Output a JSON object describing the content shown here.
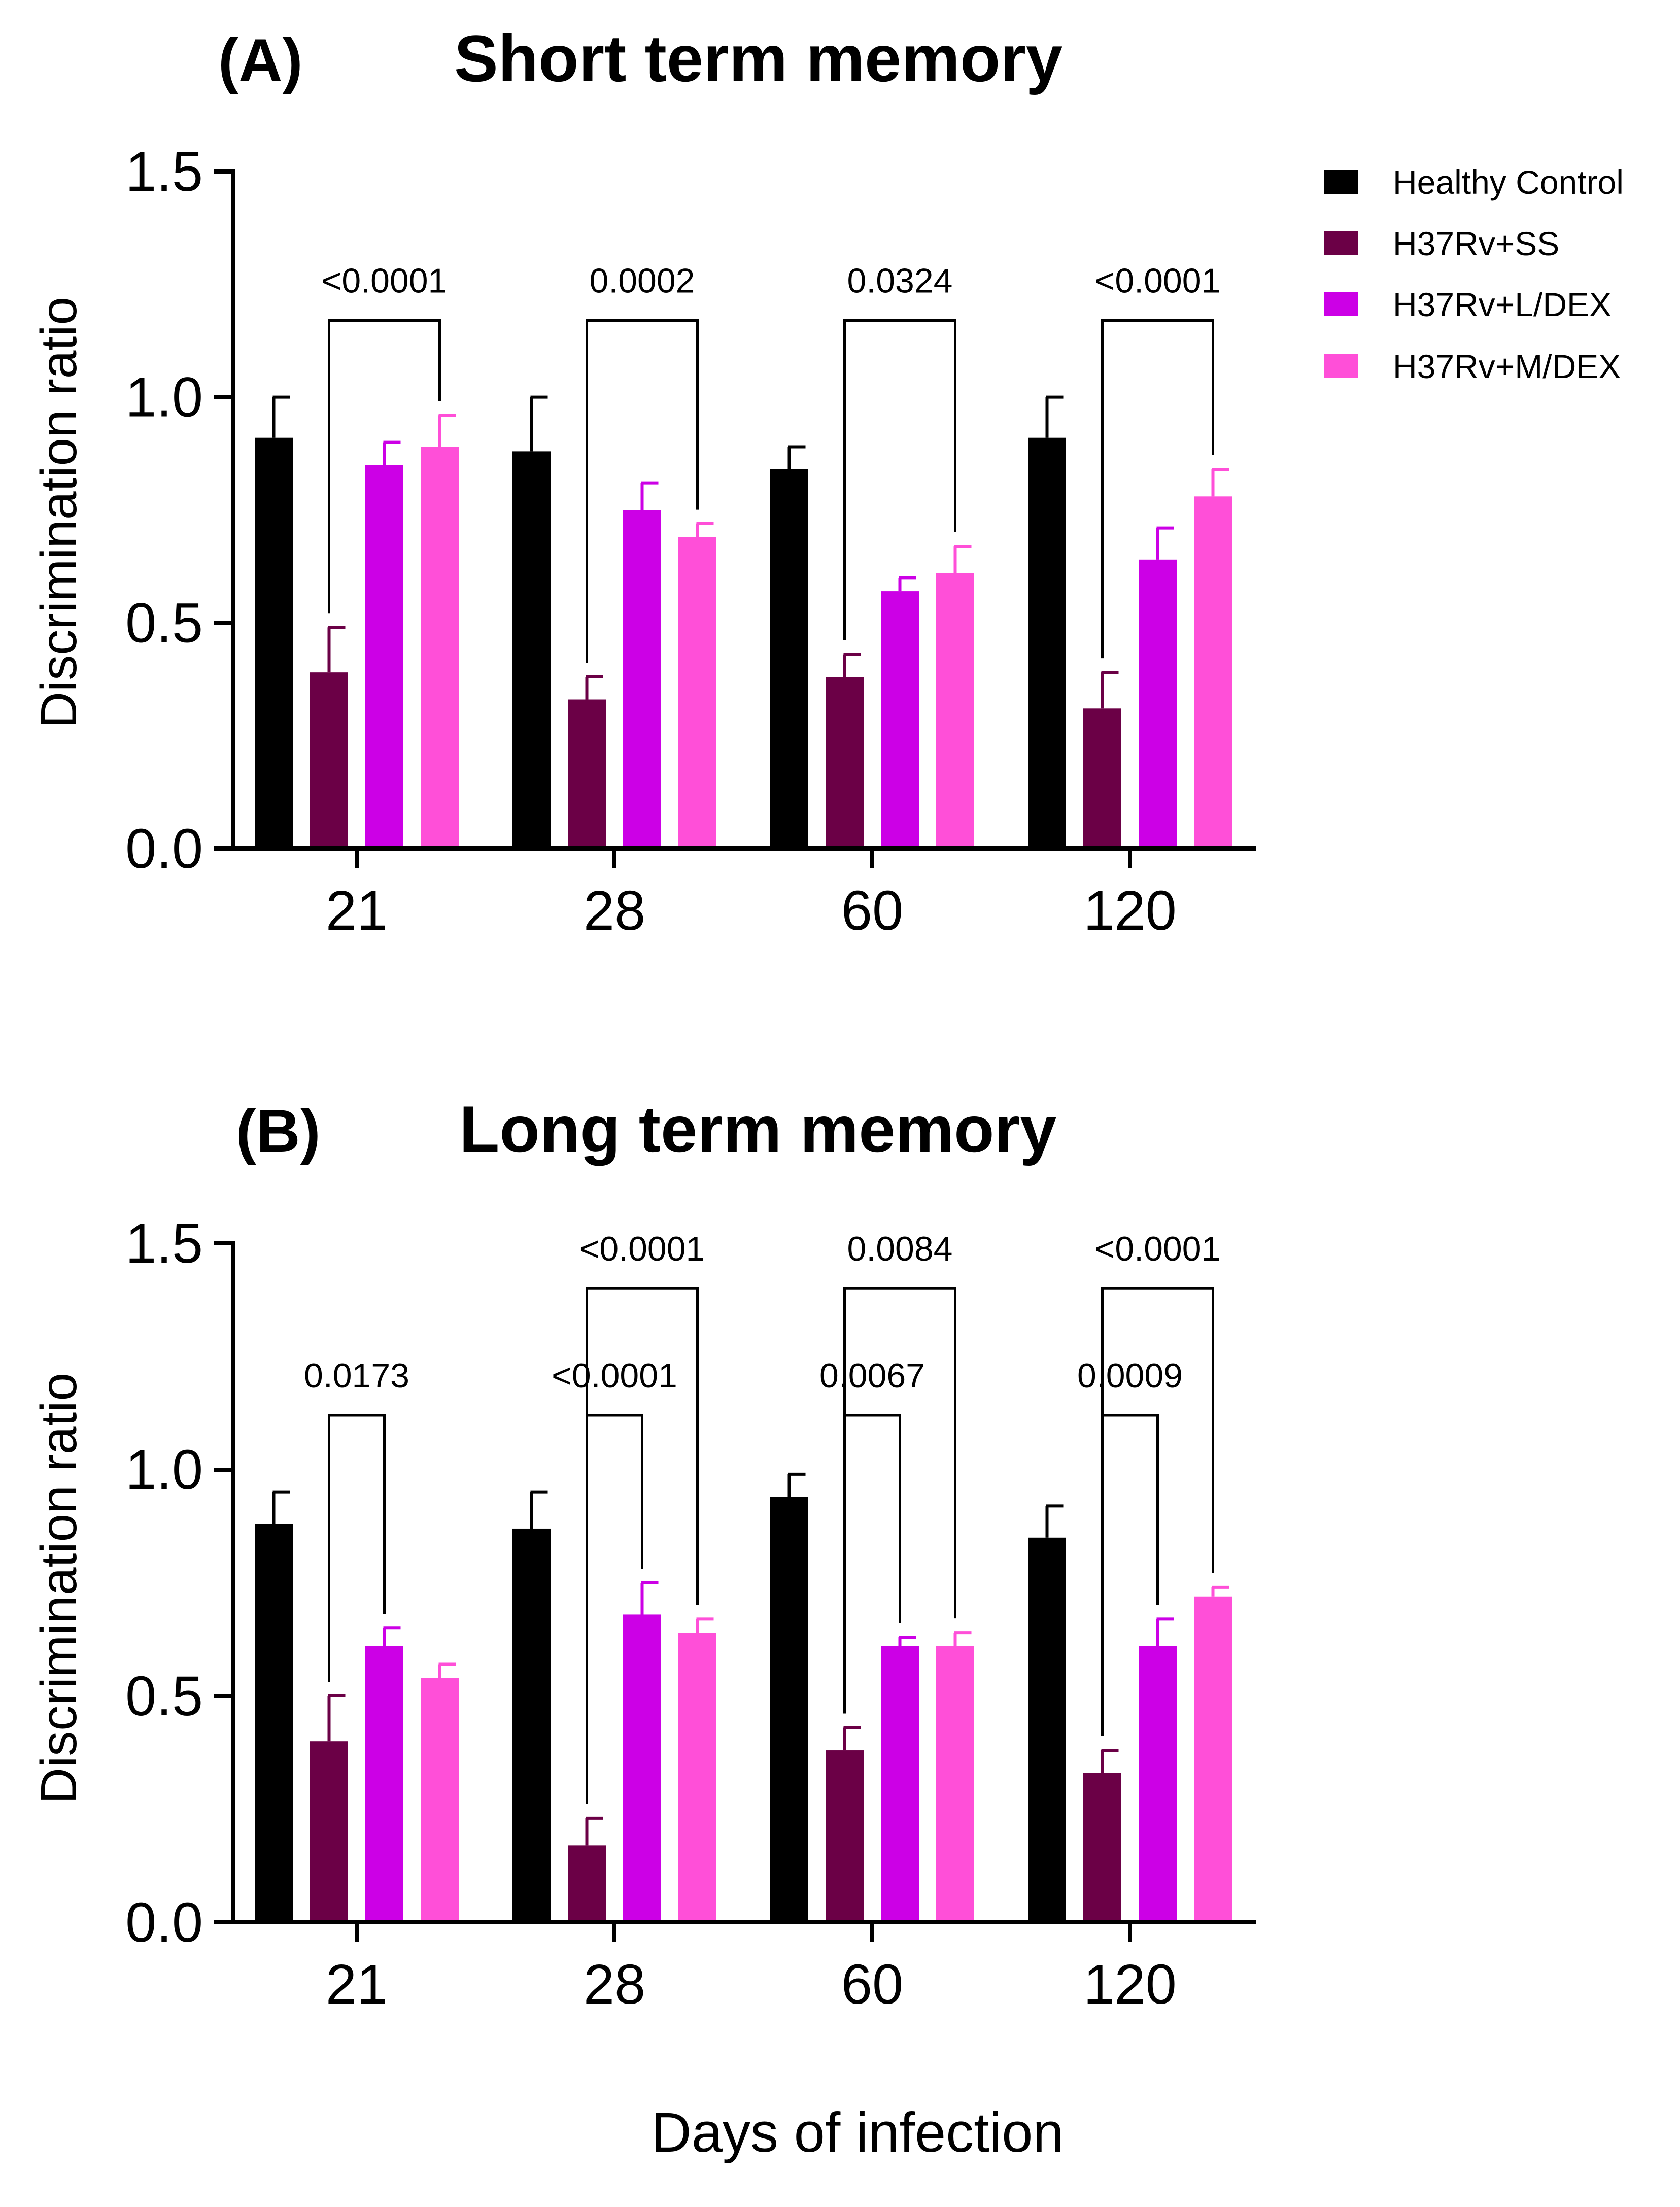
{
  "figure": {
    "xlabel": "Days of infection",
    "colors": {
      "Healthy Control": "#000000",
      "H37Rv+SS": "#6b0046",
      "H37Rv+L/DEX": "#cc00e6",
      "H37Rv+M/DEX": "#ff4fd8"
    }
  },
  "legend": {
    "position": "top-right",
    "items": [
      "Healthy Control",
      "H37Rv+SS",
      "H37Rv+L/DEX",
      "H37Rv+M/DEX"
    ]
  },
  "chart_data": [
    {
      "type": "bar",
      "panel": "(A)",
      "title": "Short term memory",
      "xlabel": "Days of infection",
      "ylabel": "Discrimination ratio",
      "ylim": [
        0,
        1.5
      ],
      "yticks": [
        "0.0",
        "0.5",
        "1.0",
        "1.5"
      ],
      "categories": [
        "21",
        "28",
        "60",
        "120"
      ],
      "series": [
        {
          "name": "Healthy Control",
          "values": [
            0.91,
            0.88,
            0.84,
            0.91
          ],
          "errors": [
            0.09,
            0.12,
            0.05,
            0.09
          ]
        },
        {
          "name": "H37Rv+SS",
          "values": [
            0.39,
            0.33,
            0.38,
            0.31
          ],
          "errors": [
            0.1,
            0.05,
            0.05,
            0.08
          ]
        },
        {
          "name": "H37Rv+L/DEX",
          "values": [
            0.85,
            0.75,
            0.57,
            0.64
          ],
          "errors": [
            0.05,
            0.06,
            0.03,
            0.07
          ]
        },
        {
          "name": "H37Rv+M/DEX",
          "values": [
            0.89,
            0.69,
            0.61,
            0.78
          ],
          "errors": [
            0.07,
            0.03,
            0.06,
            0.06
          ]
        }
      ],
      "comparisons": [
        {
          "category": "21",
          "from": "H37Rv+SS",
          "to": "H37Rv+M/DEX",
          "level": 1.17,
          "p": "<0.0001"
        },
        {
          "category": "28",
          "from": "H37Rv+SS",
          "to": "H37Rv+M/DEX",
          "level": 1.17,
          "p": "0.0002"
        },
        {
          "category": "60",
          "from": "H37Rv+SS",
          "to": "H37Rv+M/DEX",
          "level": 1.17,
          "p": "0.0324"
        },
        {
          "category": "120",
          "from": "H37Rv+SS",
          "to": "H37Rv+M/DEX",
          "level": 1.17,
          "p": "<0.0001"
        }
      ]
    },
    {
      "type": "bar",
      "panel": "(B)",
      "title": "Long term memory",
      "xlabel": "Days of infection",
      "ylabel": "Discrimination ratio",
      "ylim": [
        0,
        1.5
      ],
      "yticks": [
        "0.0",
        "0.5",
        "1.0",
        "1.5"
      ],
      "categories": [
        "21",
        "28",
        "60",
        "120"
      ],
      "series": [
        {
          "name": "Healthy Control",
          "values": [
            0.88,
            0.87,
            0.94,
            0.85
          ],
          "errors": [
            0.07,
            0.08,
            0.05,
            0.07
          ]
        },
        {
          "name": "H37Rv+SS",
          "values": [
            0.4,
            0.17,
            0.38,
            0.33
          ],
          "errors": [
            0.1,
            0.06,
            0.05,
            0.05
          ]
        },
        {
          "name": "H37Rv+L/DEX",
          "values": [
            0.61,
            0.68,
            0.61,
            0.61
          ],
          "errors": [
            0.04,
            0.07,
            0.02,
            0.06
          ]
        },
        {
          "name": "H37Rv+M/DEX",
          "values": [
            0.54,
            0.64,
            0.61,
            0.72
          ],
          "errors": [
            0.03,
            0.03,
            0.03,
            0.02
          ]
        }
      ],
      "comparisons": [
        {
          "category": "21",
          "from": "H37Rv+SS",
          "to": "H37Rv+L/DEX",
          "level": 1.12,
          "p": "0.0173"
        },
        {
          "category": "28",
          "from": "H37Rv+SS",
          "to": "H37Rv+L/DEX",
          "level": 1.12,
          "p": "<0.0001"
        },
        {
          "category": "28",
          "from": "H37Rv+SS",
          "to": "H37Rv+M/DEX",
          "level": 1.4,
          "p": "<0.0001"
        },
        {
          "category": "60",
          "from": "H37Rv+SS",
          "to": "H37Rv+L/DEX",
          "level": 1.12,
          "p": "0.0067"
        },
        {
          "category": "60",
          "from": "H37Rv+SS",
          "to": "H37Rv+M/DEX",
          "level": 1.4,
          "p": "0.0084"
        },
        {
          "category": "120",
          "from": "H37Rv+SS",
          "to": "H37Rv+L/DEX",
          "level": 1.12,
          "p": "0.0009"
        },
        {
          "category": "120",
          "from": "H37Rv+SS",
          "to": "H37Rv+M/DEX",
          "level": 1.4,
          "p": "<0.0001"
        }
      ]
    }
  ]
}
